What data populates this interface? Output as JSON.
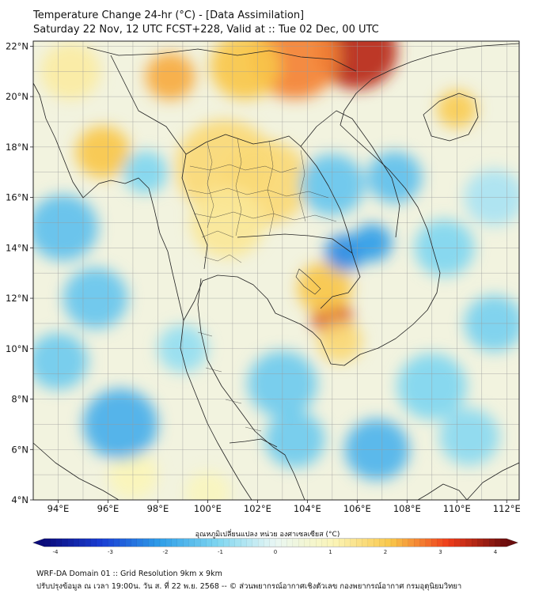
{
  "title_line1": "Temperature Change 24-hr (°C) - [Data Assimilation]",
  "title_line2": "Saturday 22 Nov, 12 UTC FCST+228, Valid at :: Tue 02 Dec, 00 UTC",
  "map": {
    "lon_range": [
      93,
      112.5
    ],
    "lat_range": [
      4,
      22.2
    ],
    "lat_labels": [
      "22°N",
      "20°N",
      "18°N",
      "16°N",
      "14°N",
      "12°N",
      "10°N",
      "8°N",
      "6°N",
      "4°N"
    ],
    "lon_labels": [
      "94°E",
      "96°E",
      "98°E",
      "100°E",
      "102°E",
      "104°E",
      "106°E",
      "108°E",
      "110°E",
      "112°E"
    ],
    "grid": true,
    "background_color": "#f2f3df",
    "field_blobs": [
      {
        "lon": 106.0,
        "lat": 21.8,
        "value": 3.4,
        "radius_deg": 1.6
      },
      {
        "lon": 103.5,
        "lat": 21.6,
        "value": 2.5,
        "radius_deg": 1.8
      },
      {
        "lon": 101.5,
        "lat": 21.2,
        "value": 2.0,
        "radius_deg": 1.4
      },
      {
        "lon": 98.5,
        "lat": 20.8,
        "value": 2.2,
        "radius_deg": 1.0
      },
      {
        "lon": 95.8,
        "lat": 17.8,
        "value": 2.0,
        "radius_deg": 1.1
      },
      {
        "lon": 100.7,
        "lat": 17.2,
        "value": 1.6,
        "radius_deg": 2.0
      },
      {
        "lon": 102.3,
        "lat": 16.6,
        "value": 1.6,
        "radius_deg": 1.8
      },
      {
        "lon": 100.8,
        "lat": 15.0,
        "value": 1.3,
        "radius_deg": 1.5
      },
      {
        "lon": 105.0,
        "lat": 11.2,
        "value": 3.2,
        "radius_deg": 0.8
      },
      {
        "lon": 104.7,
        "lat": 12.4,
        "value": 2.0,
        "radius_deg": 1.1
      },
      {
        "lon": 105.3,
        "lat": 10.3,
        "value": 1.6,
        "radius_deg": 0.9
      },
      {
        "lon": 110.0,
        "lat": 19.5,
        "value": 1.9,
        "radius_deg": 0.8
      },
      {
        "lon": 94.5,
        "lat": 21.0,
        "value": 1.2,
        "radius_deg": 1.2
      },
      {
        "lon": 97.0,
        "lat": 5.0,
        "value": 1.0,
        "radius_deg": 1.0
      },
      {
        "lon": 100.0,
        "lat": 4.3,
        "value": 0.9,
        "radius_deg": 0.9
      },
      {
        "lon": 105.5,
        "lat": 13.8,
        "value": -2.2,
        "radius_deg": 0.8
      },
      {
        "lon": 106.6,
        "lat": 14.2,
        "value": -2.0,
        "radius_deg": 0.8
      },
      {
        "lon": 105.0,
        "lat": 16.5,
        "value": -1.3,
        "radius_deg": 1.3
      },
      {
        "lon": 107.5,
        "lat": 16.8,
        "value": -1.4,
        "radius_deg": 1.1
      },
      {
        "lon": 109.5,
        "lat": 14.0,
        "value": -1.0,
        "radius_deg": 1.2
      },
      {
        "lon": 94.2,
        "lat": 14.8,
        "value": -1.4,
        "radius_deg": 1.4
      },
      {
        "lon": 95.5,
        "lat": 12.0,
        "value": -1.3,
        "radius_deg": 1.3
      },
      {
        "lon": 94.0,
        "lat": 9.5,
        "value": -1.2,
        "radius_deg": 1.2
      },
      {
        "lon": 96.5,
        "lat": 7.0,
        "value": -1.7,
        "radius_deg": 1.5
      },
      {
        "lon": 103.0,
        "lat": 8.6,
        "value": -1.2,
        "radius_deg": 1.4
      },
      {
        "lon": 103.5,
        "lat": 6.4,
        "value": -1.2,
        "radius_deg": 1.2
      },
      {
        "lon": 106.8,
        "lat": 6.0,
        "value": -1.6,
        "radius_deg": 1.3
      },
      {
        "lon": 109.0,
        "lat": 8.5,
        "value": -1.0,
        "radius_deg": 1.4
      },
      {
        "lon": 111.5,
        "lat": 11.0,
        "value": -1.1,
        "radius_deg": 1.2
      },
      {
        "lon": 110.5,
        "lat": 6.5,
        "value": -0.9,
        "radius_deg": 1.2
      },
      {
        "lon": 97.5,
        "lat": 17.0,
        "value": -1.0,
        "radius_deg": 0.9
      },
      {
        "lon": 111.5,
        "lat": 16.0,
        "value": -0.6,
        "radius_deg": 1.2
      },
      {
        "lon": 99.0,
        "lat": 10.0,
        "value": -0.8,
        "radius_deg": 1.0
      }
    ]
  },
  "colorbar": {
    "title": "อุณหภูมิเปลี่ยนแปลง หน่วย องศาเซลเซียส (°C)",
    "min": -4,
    "max": 4,
    "ticks": [
      "-4",
      "-3",
      "-2",
      "-1",
      "0",
      "1",
      "2",
      "3",
      "4"
    ],
    "colors": [
      "#0b0b7a",
      "#1a3fd4",
      "#2f9ee8",
      "#7fd6f0",
      "#e9f7f4",
      "#fbf5b8",
      "#f9c74a",
      "#ee3c1b",
      "#6a0d0d"
    ]
  },
  "footer_line1": "WRF-DA Domain 01 :: Grid Resolution 9km x 9km",
  "footer_line2": "ปรับปรุงข้อมูล ณ เวลา 19:00น. วัน ส. ที่ 22 พ.ย. 2568 -- © ส่วนพยากรณ์อากาศเชิงตัวเลข กองพยากรณ์อากาศ กรมอุตุนิยมวิทยา"
}
